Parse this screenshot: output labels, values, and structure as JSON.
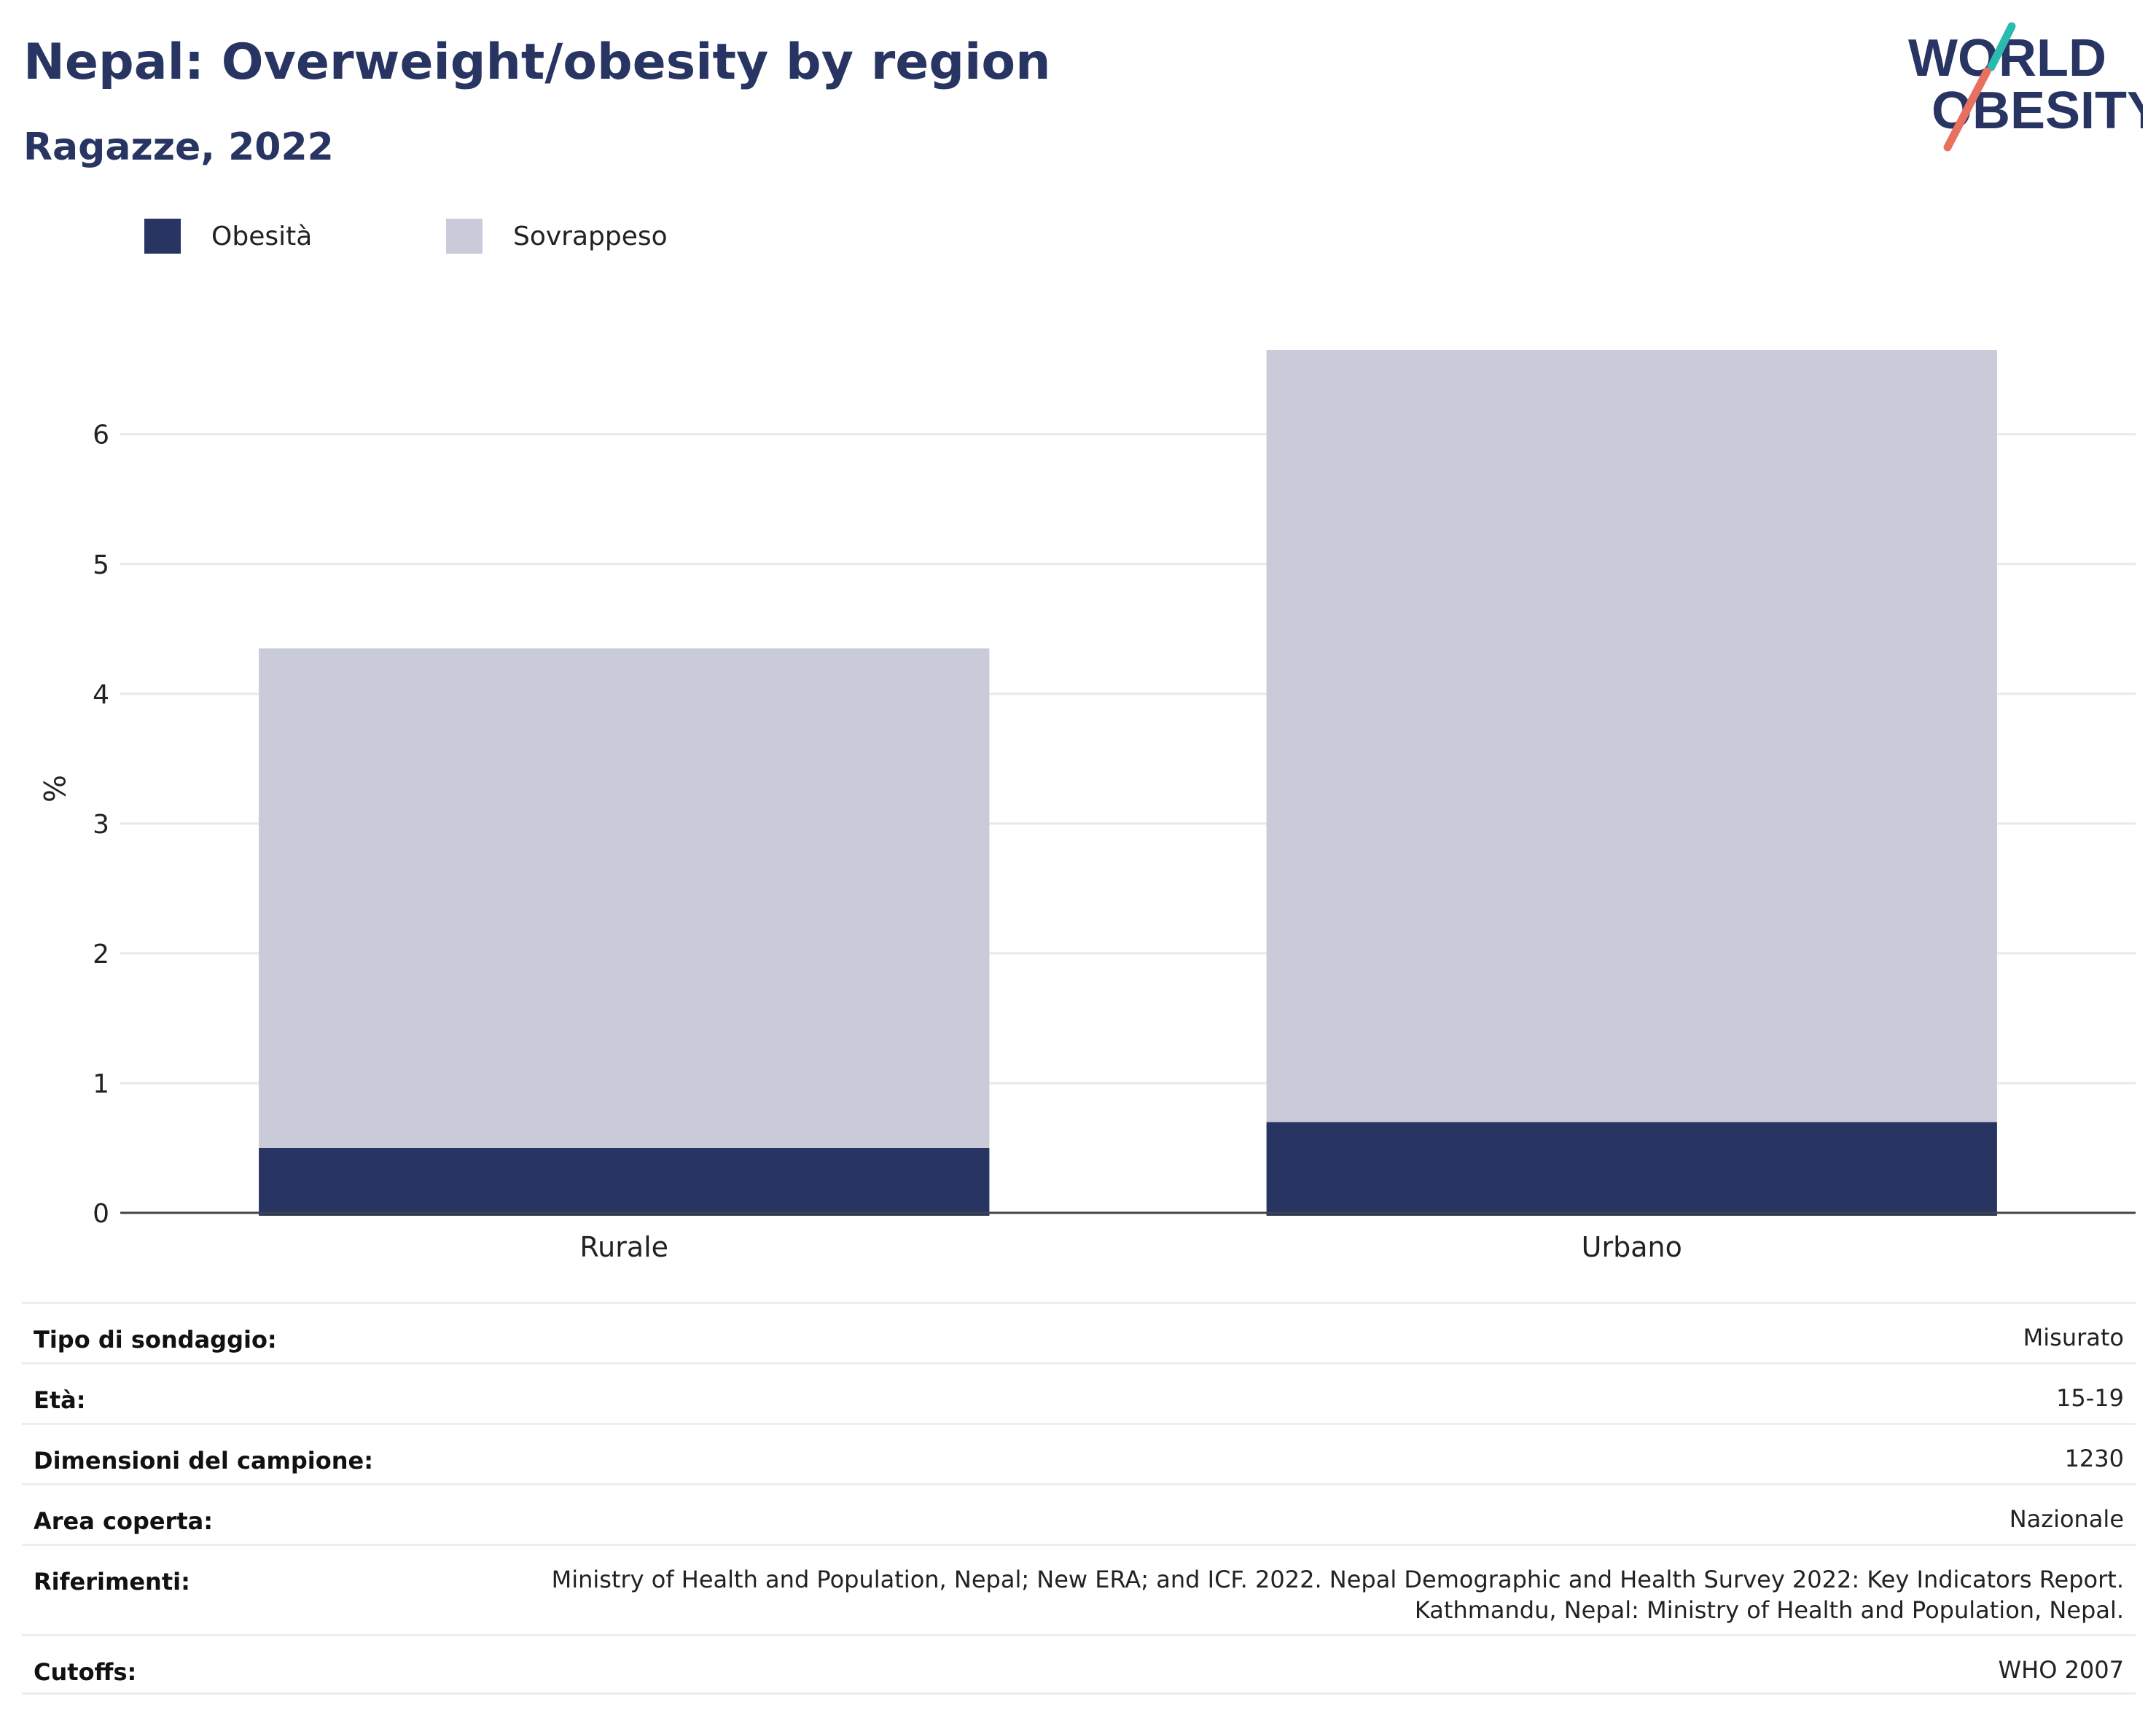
{
  "header": {
    "title": "Nepal: Overweight/obesity by region",
    "subtitle": "Ragazze, 2022"
  },
  "logo": {
    "line1": "WORLD",
    "line2": "OBESITY",
    "colors": {
      "text": "#283462",
      "accent_teal": "#2bbab0",
      "accent_coral": "#e8705f"
    }
  },
  "legend": {
    "items": [
      {
        "label": "Obesità",
        "color": "#283462"
      },
      {
        "label": "Sovrappeso",
        "color": "#c9ccd8"
      }
    ]
  },
  "chart_data": {
    "type": "bar",
    "stacked": true,
    "categories": [
      "Rurale",
      "Urbano"
    ],
    "series": [
      {
        "name": "Obesità",
        "color": "#283462",
        "values": [
          0.5,
          0.7
        ]
      },
      {
        "name": "Sovrappeso",
        "color": "#c9ccd8",
        "values": [
          3.85,
          5.95
        ]
      }
    ],
    "ylabel": "%",
    "xlabel": "",
    "ylim": [
      0,
      6.65
    ],
    "yticks": [
      0,
      1,
      2,
      3,
      4,
      5,
      6
    ],
    "grid": true,
    "legend_position": "top-left"
  },
  "info_table": {
    "rows": [
      {
        "label": "Tipo di sondaggio:",
        "value": [
          "Misurato"
        ]
      },
      {
        "label": "Età:",
        "value": [
          "15-19"
        ]
      },
      {
        "label": "Dimensioni del campione:",
        "value": [
          "1230"
        ]
      },
      {
        "label": "Area coperta:",
        "value": [
          "Nazionale"
        ]
      },
      {
        "label": "Riferimenti:",
        "value": [
          "Ministry of Health and Population, Nepal; New ERA; and ICF. 2022. Nepal Demographic and Health Survey 2022: Key Indicators Report.",
          "Kathmandu, Nepal: Ministry of Health and Population, Nepal."
        ]
      },
      {
        "label": "Cutoffs:",
        "value": [
          "WHO 2007"
        ]
      }
    ]
  }
}
